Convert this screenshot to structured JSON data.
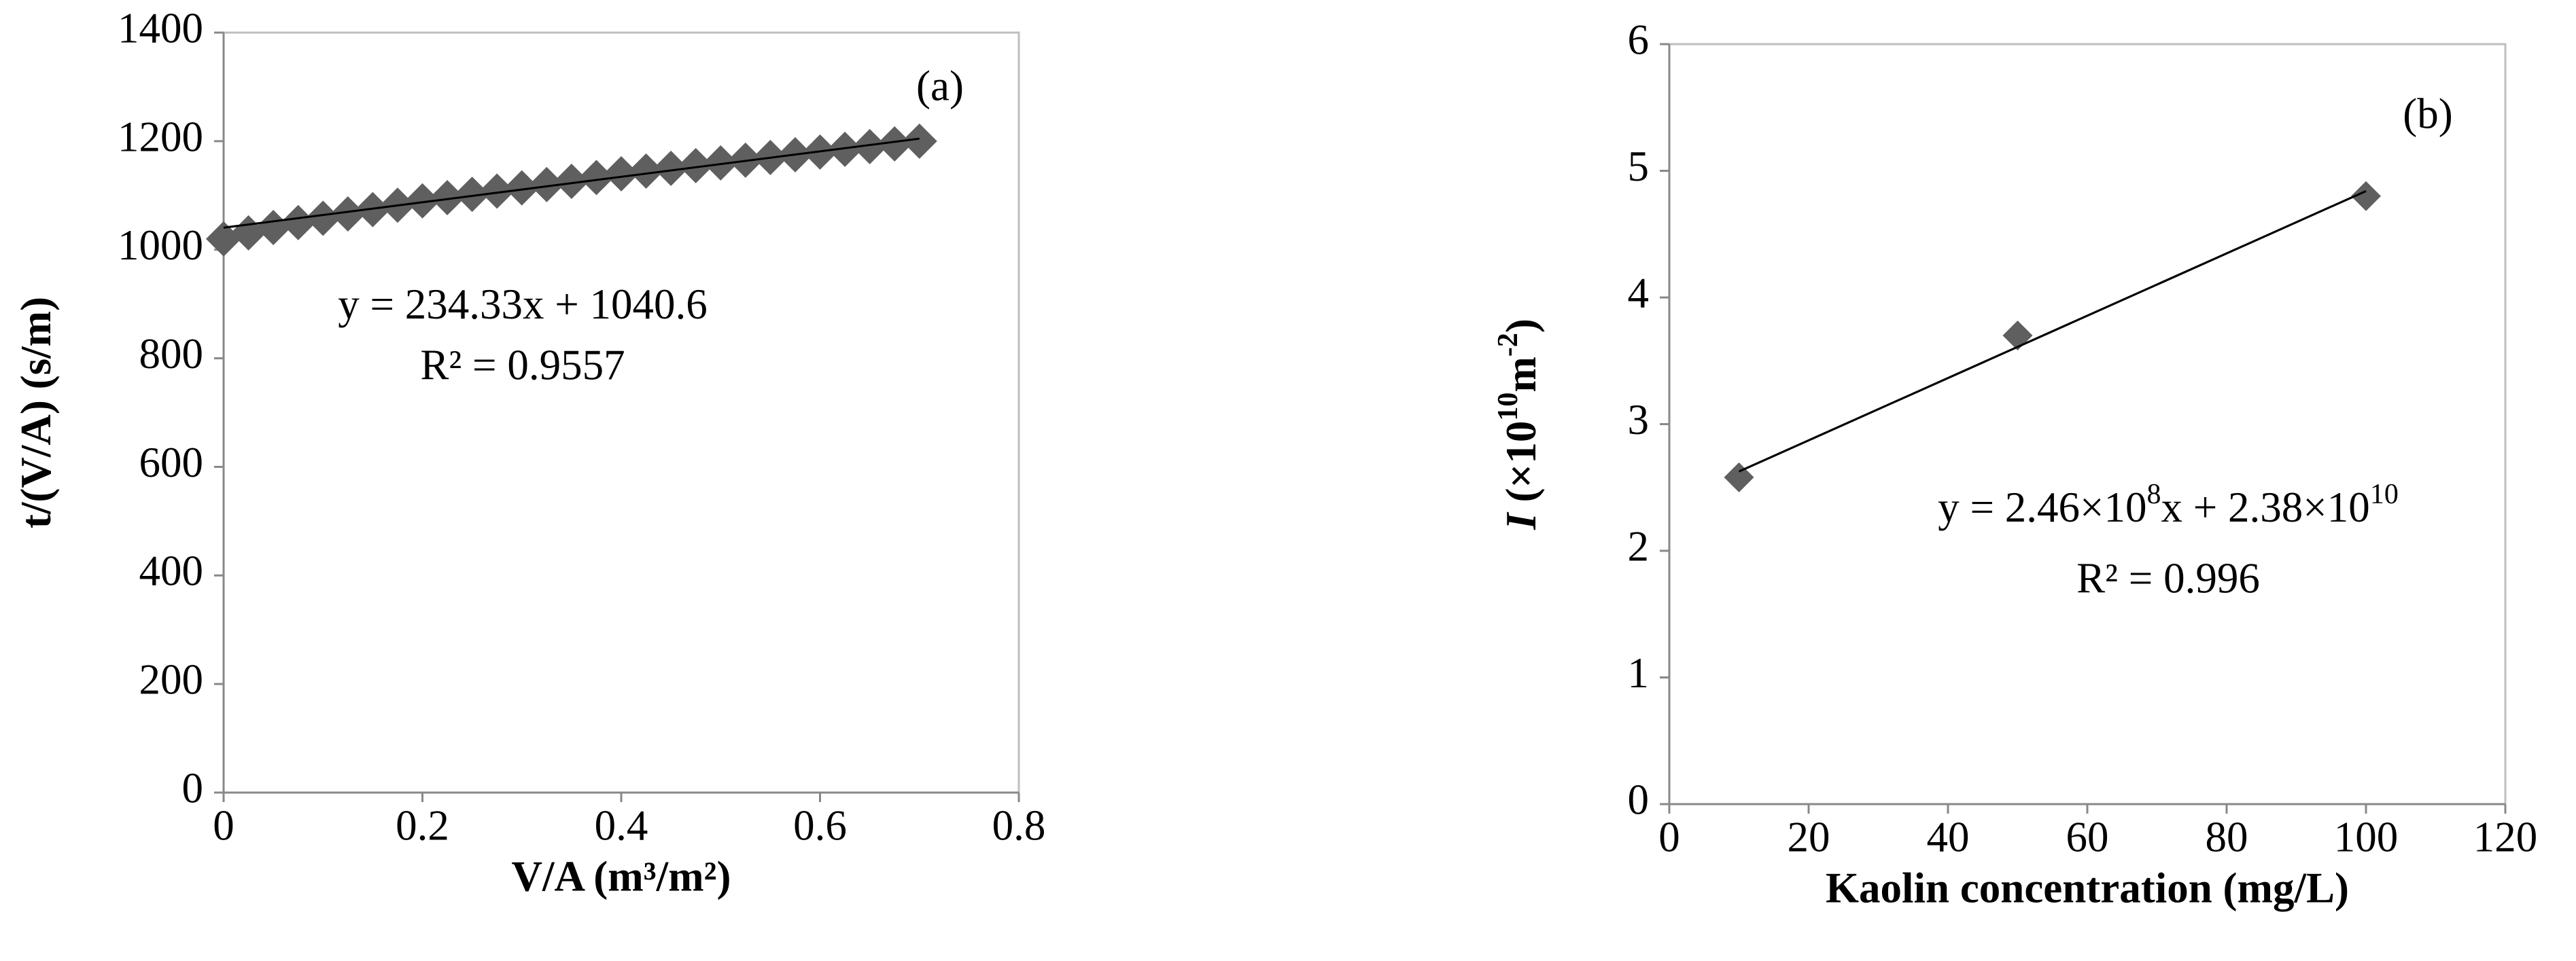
{
  "chart_data": [
    {
      "type": "scatter",
      "panel_label": "(a)",
      "x_label": "V/A (m³/m²)",
      "y_label": [
        {
          "text": "t/(V/A) (s/m)"
        }
      ],
      "x": [
        0,
        0.025,
        0.05,
        0.075,
        0.1,
        0.125,
        0.15,
        0.175,
        0.2,
        0.225,
        0.25,
        0.275,
        0.3,
        0.325,
        0.35,
        0.375,
        0.4,
        0.425,
        0.45,
        0.475,
        0.5,
        0.525,
        0.55,
        0.575,
        0.6,
        0.625,
        0.65,
        0.675,
        0.7
      ],
      "values": [
        1020,
        1031,
        1041,
        1050,
        1058,
        1066,
        1074,
        1082,
        1090,
        1096,
        1102,
        1108,
        1114,
        1120,
        1126,
        1133,
        1140,
        1145,
        1150,
        1155,
        1160,
        1165,
        1170,
        1175,
        1180,
        1185,
        1190,
        1195,
        1200
      ],
      "color": "#5f5f5f",
      "xlim": [
        0,
        0.8
      ],
      "xticks": [
        0,
        0.2,
        0.4,
        0.6,
        0.8
      ],
      "ylim": [
        0,
        1400
      ],
      "yticks": [
        0,
        200,
        400,
        600,
        800,
        1000,
        1200,
        1400
      ],
      "trendline": {
        "slope": 234.33,
        "intercept": 1040.6
      },
      "equation": [
        {
          "text": "y = 234.33x + 1040.6"
        }
      ],
      "r_squared": "R² = 0.9557"
    },
    {
      "type": "scatter",
      "panel_label": "(b)",
      "x_label": "Kaolin concentration (mg/L)",
      "y_label": [
        {
          "text": "I",
          "italic": true
        },
        {
          "text": " (×10"
        },
        {
          "text": "10",
          "sup": true
        },
        {
          "text": "m"
        },
        {
          "text": "-2",
          "sup": true
        },
        {
          "text": ")"
        }
      ],
      "x": [
        10,
        50,
        100
      ],
      "values": [
        2.58,
        3.7,
        4.8
      ],
      "color": "#5f5f5f",
      "xlim": [
        0,
        120
      ],
      "xticks": [
        0,
        20,
        40,
        60,
        80,
        100,
        120
      ],
      "ylim": [
        0,
        6
      ],
      "yticks": [
        0,
        1,
        2,
        3,
        4,
        5,
        6
      ],
      "trendline": {
        "slope": 0.0246,
        "intercept": 2.38
      },
      "equation": [
        {
          "text": "y = 2.46×10"
        },
        {
          "text": "8",
          "sup": true
        },
        {
          "text": "x + 2.38×10"
        },
        {
          "text": "10",
          "sup": true
        }
      ],
      "r_squared": "R² = 0.996"
    }
  ]
}
